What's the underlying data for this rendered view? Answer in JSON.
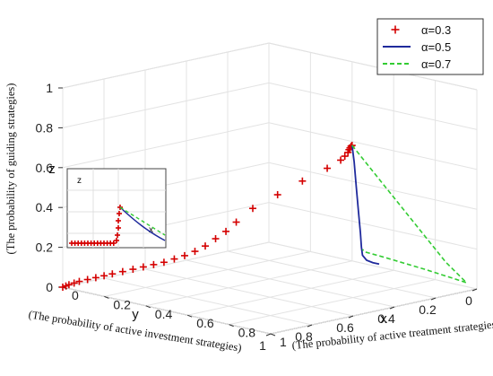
{
  "chart_data": {
    "type": "line",
    "subtype": "3d-trajectory",
    "axes": {
      "x": {
        "name": "x",
        "description": "(The probability of active treatment strategies)",
        "range": [
          0,
          1
        ],
        "ticks": [
          "0",
          "0.2",
          "0.4",
          "0.6",
          "0.8",
          "1"
        ]
      },
      "y": {
        "name": "y",
        "description": "(The probability of active investment strategies)",
        "range": [
          0,
          1
        ],
        "ticks": [
          "0",
          "0.2",
          "0.4",
          "0.6",
          "0.8",
          "1"
        ]
      },
      "z": {
        "name": "z",
        "description": "(The probability of guiding strategies)",
        "range": [
          0,
          1
        ],
        "ticks": [
          "0",
          "0.2",
          "0.4",
          "0.6",
          "0.8",
          "1"
        ]
      }
    },
    "grid": true,
    "legend_position": "top-right",
    "series": [
      {
        "name": "α=0.3",
        "style": "plus-markers",
        "color": "#d40000",
        "points": [
          [
            0.0,
            1.0,
            0.0
          ],
          [
            0.005,
            0.99,
            0.005
          ],
          [
            0.01,
            0.98,
            0.01
          ],
          [
            0.015,
            0.96,
            0.015
          ],
          [
            0.02,
            0.94,
            0.02
          ],
          [
            0.03,
            0.91,
            0.025
          ],
          [
            0.04,
            0.88,
            0.03
          ],
          [
            0.05,
            0.85,
            0.035
          ],
          [
            0.06,
            0.82,
            0.04
          ],
          [
            0.07,
            0.78,
            0.045
          ],
          [
            0.08,
            0.74,
            0.05
          ],
          [
            0.09,
            0.7,
            0.055
          ],
          [
            0.1,
            0.66,
            0.06
          ],
          [
            0.11,
            0.62,
            0.065
          ],
          [
            0.12,
            0.58,
            0.075
          ],
          [
            0.13,
            0.54,
            0.085
          ],
          [
            0.14,
            0.5,
            0.1
          ],
          [
            0.15,
            0.46,
            0.12
          ],
          [
            0.16,
            0.42,
            0.15
          ],
          [
            0.17,
            0.38,
            0.18
          ],
          [
            0.18,
            0.34,
            0.22
          ],
          [
            0.2,
            0.28,
            0.28
          ],
          [
            0.24,
            0.2,
            0.34
          ],
          [
            0.28,
            0.12,
            0.4
          ],
          [
            0.33,
            0.05,
            0.46
          ],
          [
            0.36,
            0.015,
            0.5
          ],
          [
            0.37,
            0.005,
            0.52
          ],
          [
            0.38,
            0.0,
            0.54
          ],
          [
            0.385,
            0.0,
            0.555
          ],
          [
            0.39,
            0.0,
            0.565
          ],
          [
            0.395,
            0.0,
            0.575
          ],
          [
            0.4,
            0.0,
            0.58
          ]
        ]
      },
      {
        "name": "α=0.5",
        "style": "solid-line",
        "color": "#1f2a9c",
        "points": [
          [
            0.4,
            0.0,
            0.58
          ],
          [
            0.41,
            0.0,
            0.5
          ],
          [
            0.42,
            0.0,
            0.38
          ],
          [
            0.43,
            0.0,
            0.26
          ],
          [
            0.44,
            0.0,
            0.15
          ],
          [
            0.445,
            0.0,
            0.08
          ],
          [
            0.45,
            0.0,
            0.04
          ],
          [
            0.47,
            0.0,
            0.02
          ],
          [
            0.5,
            0.0,
            0.015
          ],
          [
            0.53,
            0.0,
            0.015
          ]
        ]
      },
      {
        "name": "α=0.7",
        "style": "dashed-line",
        "color": "#33cc33",
        "points": [
          [
            0.4,
            0.0,
            0.58
          ],
          [
            0.55,
            0.0,
            0.42
          ],
          [
            0.7,
            0.0,
            0.26
          ],
          [
            0.85,
            0.0,
            0.1
          ],
          [
            0.95,
            0.0,
            0.02
          ],
          [
            0.75,
            0.0,
            0.04
          ],
          [
            0.55,
            0.0,
            0.055
          ],
          [
            0.46,
            0.0,
            0.06
          ],
          [
            0.45,
            0.0,
            0.07
          ]
        ]
      }
    ],
    "inset": {
      "labels": {
        "z": "z",
        "x": "x"
      },
      "description": "zoomed projection of trajectories near the origin"
    }
  }
}
